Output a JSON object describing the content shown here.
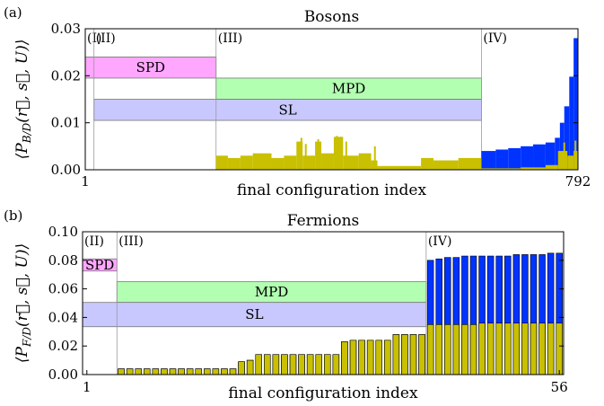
{
  "chart_data": [
    {
      "panel": "(a)",
      "type": "bar",
      "title": "Bosons",
      "xlabel": "final configuration index",
      "ylabel": "⟨P_{B/D}(r⃗, s⃗, U)⟩",
      "ylabel_parts": {
        "open": "⟨P",
        "sub": "B/D",
        "args": "(r⃗, s⃗, U)",
        "close": "⟩"
      },
      "xlim": [
        1,
        792
      ],
      "ylim": [
        0,
        0.03
      ],
      "xticks": [
        1,
        792
      ],
      "yticks": [
        "0.00",
        "0.01",
        "0.02",
        "0.03"
      ],
      "colors": {
        "total": "#0033ff",
        "diagonal": "#c8c000"
      },
      "regions": [
        {
          "label": "(I)",
          "start": 1,
          "end": 15
        },
        {
          "label": "(II)",
          "start": 15,
          "end": 211
        },
        {
          "label": "(III)",
          "start": 211,
          "end": 637
        },
        {
          "label": "(IV)",
          "start": 637,
          "end": 792
        }
      ],
      "bands": [
        {
          "label": "SPD",
          "xstart": 1,
          "xend": 211,
          "ylow": 0.0195,
          "yhigh": 0.024,
          "color": "#ffa6ff"
        },
        {
          "label": "MPD",
          "xstart": 211,
          "xend": 637,
          "ylow": 0.015,
          "yhigh": 0.0195,
          "color": "#b2ffb2"
        },
        {
          "label": "SL",
          "xstart": 15,
          "xend": 637,
          "ylow": 0.0105,
          "yhigh": 0.015,
          "color": "#c8c8ff"
        }
      ],
      "series": [
        {
          "kind": "diagonal",
          "segments": [
            {
              "x0": 211,
              "x1": 230,
              "y": 0.003
            },
            {
              "x0": 230,
              "x1": 250,
              "y": 0.0025
            },
            {
              "x0": 250,
              "x1": 270,
              "y": 0.003
            },
            {
              "x0": 270,
              "x1": 300,
              "y": 0.0035
            },
            {
              "x0": 300,
              "x1": 320,
              "y": 0.0025
            },
            {
              "x0": 320,
              "x1": 340,
              "y": 0.003
            },
            {
              "x0": 340,
              "x1": 350,
              "y": 0.006
            },
            {
              "x0": 350,
              "x1": 370,
              "y": 0.003
            },
            {
              "x0": 370,
              "x1": 380,
              "y": 0.006
            },
            {
              "x0": 380,
              "x1": 400,
              "y": 0.0035
            },
            {
              "x0": 400,
              "x1": 415,
              "y": 0.007
            },
            {
              "x0": 415,
              "x1": 440,
              "y": 0.003
            },
            {
              "x0": 440,
              "x1": 460,
              "y": 0.0035
            },
            {
              "x0": 460,
              "x1": 470,
              "y": 0.002
            },
            {
              "x0": 470,
              "x1": 540,
              "y": 0.0008
            },
            {
              "x0": 540,
              "x1": 560,
              "y": 0.0025
            },
            {
              "x0": 560,
              "x1": 600,
              "y": 0.002
            },
            {
              "x0": 600,
              "x1": 637,
              "y": 0.0025
            },
            {
              "x0": 637,
              "x1": 700,
              "y": 0.0003
            },
            {
              "x0": 700,
              "x1": 740,
              "y": 0.0005
            },
            {
              "x0": 740,
              "x1": 760,
              "y": 0.001
            },
            {
              "x0": 760,
              "x1": 775,
              "y": 0.004
            },
            {
              "x0": 775,
              "x1": 785,
              "y": 0.003
            },
            {
              "x0": 785,
              "x1": 792,
              "y": 0.004
            }
          ],
          "spikes": [
            {
              "x": 348,
              "y": 0.0068
            },
            {
              "x": 355,
              "y": 0.0055
            },
            {
              "x": 375,
              "y": 0.0065
            },
            {
              "x": 405,
              "y": 0.0072
            },
            {
              "x": 412,
              "y": 0.007
            },
            {
              "x": 420,
              "y": 0.006
            },
            {
              "x": 466,
              "y": 0.005
            },
            {
              "x": 770,
              "y": 0.0058
            },
            {
              "x": 788,
              "y": 0.0062
            }
          ]
        },
        {
          "kind": "total",
          "segments": [
            {
              "x0": 637,
              "x1": 660,
              "y": 0.004
            },
            {
              "x0": 660,
              "x1": 680,
              "y": 0.0043
            },
            {
              "x0": 680,
              "x1": 700,
              "y": 0.0046
            },
            {
              "x0": 700,
              "x1": 720,
              "y": 0.005
            },
            {
              "x0": 720,
              "x1": 740,
              "y": 0.0054
            },
            {
              "x0": 740,
              "x1": 755,
              "y": 0.0058
            },
            {
              "x0": 755,
              "x1": 763,
              "y": 0.0068
            },
            {
              "x0": 763,
              "x1": 770,
              "y": 0.01
            },
            {
              "x0": 770,
              "x1": 778,
              "y": 0.0135
            },
            {
              "x0": 778,
              "x1": 785,
              "y": 0.0198
            },
            {
              "x0": 785,
              "x1": 792,
              "y": 0.028
            }
          ]
        }
      ]
    },
    {
      "panel": "(b)",
      "type": "bar",
      "title": "Fermions",
      "xlabel": "final configuration index",
      "ylabel": "⟨P_{F/D}(r⃗, s⃗, U)⟩",
      "ylabel_parts": {
        "open": "⟨P",
        "sub": "F/D",
        "args": "(r⃗, s⃗, U)",
        "close": "⟩"
      },
      "xlim": [
        0.5,
        56.5
      ],
      "ylim": [
        0,
        0.1
      ],
      "xticks": [
        1,
        56
      ],
      "yticks": [
        "0.00",
        "0.02",
        "0.04",
        "0.06",
        "0.08",
        "0.10"
      ],
      "colors": {
        "total": "#0033ff",
        "diagonal": "#c8c000"
      },
      "regions": [
        {
          "label": "(II)",
          "start": 0.5,
          "end": 4.5
        },
        {
          "label": "(III)",
          "start": 4.5,
          "end": 40.5
        },
        {
          "label": "(IV)",
          "start": 40.5,
          "end": 56.5
        }
      ],
      "bands": [
        {
          "label": "SPD",
          "xstart": 0.5,
          "xend": 4.5,
          "ylow": 0.0725,
          "yhigh": 0.081,
          "color": "#ffa6ff"
        },
        {
          "label": "MPD",
          "xstart": 4.5,
          "xend": 40.5,
          "ylow": 0.0505,
          "yhigh": 0.065,
          "color": "#b2ffb2"
        },
        {
          "label": "SL",
          "xstart": 0.5,
          "xend": 40.5,
          "ylow": 0.0335,
          "yhigh": 0.0505,
          "color": "#c8c8ff"
        }
      ],
      "total_values": [
        0,
        0,
        0,
        0,
        0.004,
        0.004,
        0.004,
        0.004,
        0.004,
        0.004,
        0.004,
        0.004,
        0.004,
        0.004,
        0.004,
        0.004,
        0.004,
        0.004,
        0.009,
        0.01,
        0.014,
        0.014,
        0.014,
        0.014,
        0.014,
        0.014,
        0.014,
        0.014,
        0.014,
        0.014,
        0.023,
        0.024,
        0.024,
        0.024,
        0.024,
        0.024,
        0.028,
        0.028,
        0.028,
        0.028,
        0.08,
        0.081,
        0.082,
        0.082,
        0.083,
        0.083,
        0.083,
        0.083,
        0.083,
        0.083,
        0.084,
        0.084,
        0.084,
        0.084,
        0.085,
        0.085
      ],
      "diagonal_values": [
        0,
        0,
        0,
        0,
        0.004,
        0.004,
        0.004,
        0.004,
        0.004,
        0.004,
        0.004,
        0.004,
        0.004,
        0.004,
        0.004,
        0.004,
        0.004,
        0.004,
        0.009,
        0.01,
        0.014,
        0.014,
        0.014,
        0.014,
        0.014,
        0.014,
        0.014,
        0.014,
        0.014,
        0.014,
        0.023,
        0.024,
        0.024,
        0.024,
        0.024,
        0.024,
        0.028,
        0.028,
        0.028,
        0.028,
        0.035,
        0.035,
        0.035,
        0.035,
        0.035,
        0.035,
        0.036,
        0.036,
        0.036,
        0.036,
        0.036,
        0.036,
        0.036,
        0.036,
        0.036,
        0.036
      ]
    }
  ]
}
